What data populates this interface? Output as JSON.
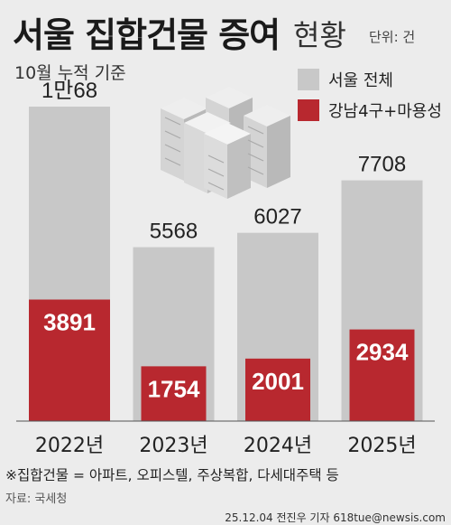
{
  "header": {
    "title": "서울 집합건물 증여",
    "subtitle": "현황",
    "unit": "단위: 건",
    "basis": "10월 누적 기준"
  },
  "legend": [
    {
      "label": "서울 전체",
      "color": "#c8c8c8"
    },
    {
      "label": "강남4구+마용성",
      "color": "#b8282f"
    }
  ],
  "chart_data": {
    "type": "bar",
    "categories": [
      "2022년",
      "2023년",
      "2024년",
      "2025년"
    ],
    "series": [
      {
        "name": "서울 전체",
        "values": [
          10068,
          5568,
          6027,
          7708
        ],
        "labels": [
          "1만68",
          "5568",
          "6027",
          "7708"
        ],
        "color": "#c8c8c8"
      },
      {
        "name": "강남4구+마용성",
        "values": [
          3891,
          1754,
          2001,
          2934
        ],
        "labels": [
          "3891",
          "1754",
          "2001",
          "2934"
        ],
        "color": "#b8282f"
      }
    ],
    "ylim": [
      0,
      11000
    ],
    "grid": false
  },
  "footnote": "※집합건물 = 아파트, 오피스텔, 주상복합, 다세대주택 등",
  "source": "자료: 국세청",
  "credit": "25.12.04 전진우 기자 618tue@newsis.com",
  "icons": {
    "illustration": "apartment-buildings-icon"
  }
}
